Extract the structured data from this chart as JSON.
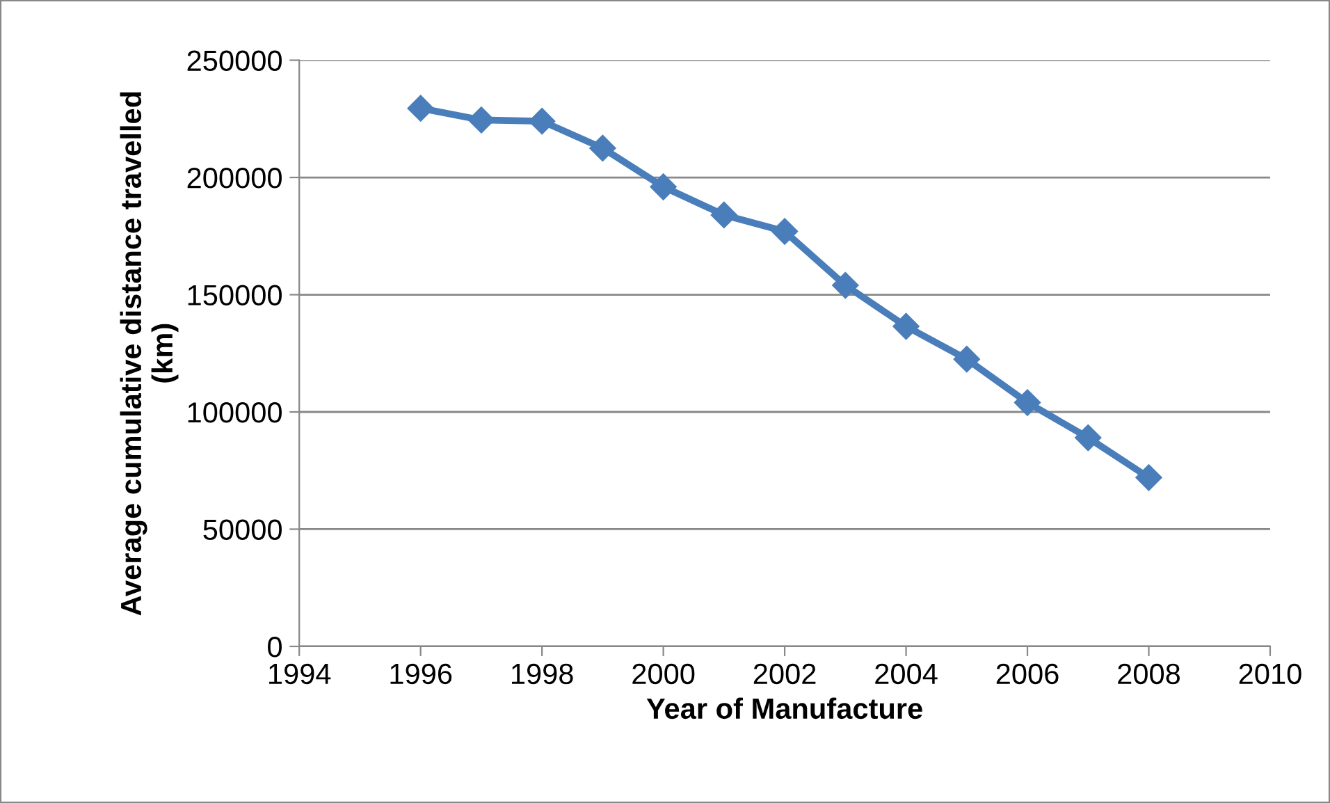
{
  "chart_data": {
    "type": "line",
    "xlabel": "Year of Manufacture",
    "ylabel": "Average cumulative distance travelled\n(km)",
    "x": [
      1996,
      1997,
      1998,
      1999,
      2000,
      2001,
      2002,
      2003,
      2004,
      2005,
      2006,
      2007,
      2008
    ],
    "series": [
      {
        "color": "#4a7ebb",
        "values": [
          229500,
          224500,
          224000,
          212500,
          196000,
          184000,
          177000,
          154000,
          136500,
          122500,
          104000,
          89000,
          72000
        ]
      }
    ],
    "xlim": [
      1994,
      2010
    ],
    "xticks": [
      1994,
      1996,
      1998,
      2000,
      2002,
      2004,
      2006,
      2008,
      2010
    ],
    "ylim": [
      0,
      250000
    ],
    "yticks": [
      0,
      50000,
      100000,
      150000,
      200000,
      250000
    ],
    "grid": "y",
    "marker": "diamond",
    "line_style": "solid"
  }
}
